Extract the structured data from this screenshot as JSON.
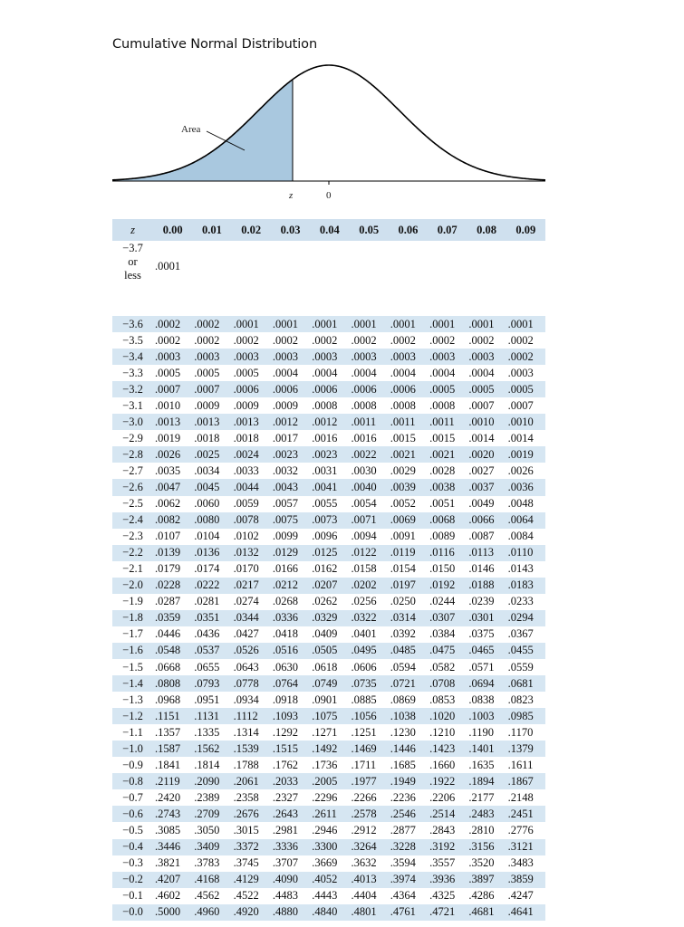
{
  "title": "Cumulative Normal Distribution",
  "figure": {
    "area_label": "Area",
    "z_label": "z",
    "zero_label": "0",
    "shade_color": "#a9c8df"
  },
  "table": {
    "z_header": "z",
    "columns": [
      "0.00",
      "0.01",
      "0.02",
      "0.03",
      "0.04",
      "0.05",
      "0.06",
      "0.07",
      "0.08",
      "0.09"
    ],
    "first_row": {
      "z_lines": [
        "−3.7",
        "or",
        "less"
      ],
      "value": ".0001"
    },
    "rows": [
      {
        "z": "−3.6",
        "values": [
          ".0002",
          ".0002",
          ".0001",
          ".0001",
          ".0001",
          ".0001",
          ".0001",
          ".0001",
          ".0001",
          ".0001"
        ]
      },
      {
        "z": "−3.5",
        "values": [
          ".0002",
          ".0002",
          ".0002",
          ".0002",
          ".0002",
          ".0002",
          ".0002",
          ".0002",
          ".0002",
          ".0002"
        ]
      },
      {
        "z": "−3.4",
        "values": [
          ".0003",
          ".0003",
          ".0003",
          ".0003",
          ".0003",
          ".0003",
          ".0003",
          ".0003",
          ".0003",
          ".0002"
        ]
      },
      {
        "z": "−3.3",
        "values": [
          ".0005",
          ".0005",
          ".0005",
          ".0004",
          ".0004",
          ".0004",
          ".0004",
          ".0004",
          ".0004",
          ".0003"
        ]
      },
      {
        "z": "−3.2",
        "values": [
          ".0007",
          ".0007",
          ".0006",
          ".0006",
          ".0006",
          ".0006",
          ".0006",
          ".0005",
          ".0005",
          ".0005"
        ]
      },
      {
        "z": "−3.1",
        "values": [
          ".0010",
          ".0009",
          ".0009",
          ".0009",
          ".0008",
          ".0008",
          ".0008",
          ".0008",
          ".0007",
          ".0007"
        ]
      },
      {
        "z": "−3.0",
        "values": [
          ".0013",
          ".0013",
          ".0013",
          ".0012",
          ".0012",
          ".0011",
          ".0011",
          ".0011",
          ".0010",
          ".0010"
        ]
      },
      {
        "z": "−2.9",
        "values": [
          ".0019",
          ".0018",
          ".0018",
          ".0017",
          ".0016",
          ".0016",
          ".0015",
          ".0015",
          ".0014",
          ".0014"
        ]
      },
      {
        "z": "−2.8",
        "values": [
          ".0026",
          ".0025",
          ".0024",
          ".0023",
          ".0023",
          ".0022",
          ".0021",
          ".0021",
          ".0020",
          ".0019"
        ]
      },
      {
        "z": "−2.7",
        "values": [
          ".0035",
          ".0034",
          ".0033",
          ".0032",
          ".0031",
          ".0030",
          ".0029",
          ".0028",
          ".0027",
          ".0026"
        ]
      },
      {
        "z": "−2.6",
        "values": [
          ".0047",
          ".0045",
          ".0044",
          ".0043",
          ".0041",
          ".0040",
          ".0039",
          ".0038",
          ".0037",
          ".0036"
        ]
      },
      {
        "z": "−2.5",
        "values": [
          ".0062",
          ".0060",
          ".0059",
          ".0057",
          ".0055",
          ".0054",
          ".0052",
          ".0051",
          ".0049",
          ".0048"
        ]
      },
      {
        "z": "−2.4",
        "values": [
          ".0082",
          ".0080",
          ".0078",
          ".0075",
          ".0073",
          ".0071",
          ".0069",
          ".0068",
          ".0066",
          ".0064"
        ]
      },
      {
        "z": "−2.3",
        "values": [
          ".0107",
          ".0104",
          ".0102",
          ".0099",
          ".0096",
          ".0094",
          ".0091",
          ".0089",
          ".0087",
          ".0084"
        ]
      },
      {
        "z": "−2.2",
        "values": [
          ".0139",
          ".0136",
          ".0132",
          ".0129",
          ".0125",
          ".0122",
          ".0119",
          ".0116",
          ".0113",
          ".0110"
        ]
      },
      {
        "z": "−2.1",
        "values": [
          ".0179",
          ".0174",
          ".0170",
          ".0166",
          ".0162",
          ".0158",
          ".0154",
          ".0150",
          ".0146",
          ".0143"
        ]
      },
      {
        "z": "−2.0",
        "values": [
          ".0228",
          ".0222",
          ".0217",
          ".0212",
          ".0207",
          ".0202",
          ".0197",
          ".0192",
          ".0188",
          ".0183"
        ]
      },
      {
        "z": "−1.9",
        "values": [
          ".0287",
          ".0281",
          ".0274",
          ".0268",
          ".0262",
          ".0256",
          ".0250",
          ".0244",
          ".0239",
          ".0233"
        ]
      },
      {
        "z": "−1.8",
        "values": [
          ".0359",
          ".0351",
          ".0344",
          ".0336",
          ".0329",
          ".0322",
          ".0314",
          ".0307",
          ".0301",
          ".0294"
        ]
      },
      {
        "z": "−1.7",
        "values": [
          ".0446",
          ".0436",
          ".0427",
          ".0418",
          ".0409",
          ".0401",
          ".0392",
          ".0384",
          ".0375",
          ".0367"
        ]
      },
      {
        "z": "−1.6",
        "values": [
          ".0548",
          ".0537",
          ".0526",
          ".0516",
          ".0505",
          ".0495",
          ".0485",
          ".0475",
          ".0465",
          ".0455"
        ]
      },
      {
        "z": "−1.5",
        "values": [
          ".0668",
          ".0655",
          ".0643",
          ".0630",
          ".0618",
          ".0606",
          ".0594",
          ".0582",
          ".0571",
          ".0559"
        ]
      },
      {
        "z": "−1.4",
        "values": [
          ".0808",
          ".0793",
          ".0778",
          ".0764",
          ".0749",
          ".0735",
          ".0721",
          ".0708",
          ".0694",
          ".0681"
        ]
      },
      {
        "z": "−1.3",
        "values": [
          ".0968",
          ".0951",
          ".0934",
          ".0918",
          ".0901",
          ".0885",
          ".0869",
          ".0853",
          ".0838",
          ".0823"
        ]
      },
      {
        "z": "−1.2",
        "values": [
          ".1151",
          ".1131",
          ".1112",
          ".1093",
          ".1075",
          ".1056",
          ".1038",
          ".1020",
          ".1003",
          ".0985"
        ]
      },
      {
        "z": "−1.1",
        "values": [
          ".1357",
          ".1335",
          ".1314",
          ".1292",
          ".1271",
          ".1251",
          ".1230",
          ".1210",
          ".1190",
          ".1170"
        ]
      },
      {
        "z": "−1.0",
        "values": [
          ".1587",
          ".1562",
          ".1539",
          ".1515",
          ".1492",
          ".1469",
          ".1446",
          ".1423",
          ".1401",
          ".1379"
        ]
      },
      {
        "z": "−0.9",
        "values": [
          ".1841",
          ".1814",
          ".1788",
          ".1762",
          ".1736",
          ".1711",
          ".1685",
          ".1660",
          ".1635",
          ".1611"
        ]
      },
      {
        "z": "−0.8",
        "values": [
          ".2119",
          ".2090",
          ".2061",
          ".2033",
          ".2005",
          ".1977",
          ".1949",
          ".1922",
          ".1894",
          ".1867"
        ]
      },
      {
        "z": "−0.7",
        "values": [
          ".2420",
          ".2389",
          ".2358",
          ".2327",
          ".2296",
          ".2266",
          ".2236",
          ".2206",
          ".2177",
          ".2148"
        ]
      },
      {
        "z": "−0.6",
        "values": [
          ".2743",
          ".2709",
          ".2676",
          ".2643",
          ".2611",
          ".2578",
          ".2546",
          ".2514",
          ".2483",
          ".2451"
        ]
      },
      {
        "z": "−0.5",
        "values": [
          ".3085",
          ".3050",
          ".3015",
          ".2981",
          ".2946",
          ".2912",
          ".2877",
          ".2843",
          ".2810",
          ".2776"
        ]
      },
      {
        "z": "−0.4",
        "values": [
          ".3446",
          ".3409",
          ".3372",
          ".3336",
          ".3300",
          ".3264",
          ".3228",
          ".3192",
          ".3156",
          ".3121"
        ]
      },
      {
        "z": "−0.3",
        "values": [
          ".3821",
          ".3783",
          ".3745",
          ".3707",
          ".3669",
          ".3632",
          ".3594",
          ".3557",
          ".3520",
          ".3483"
        ]
      },
      {
        "z": "−0.2",
        "values": [
          ".4207",
          ".4168",
          ".4129",
          ".4090",
          ".4052",
          ".4013",
          ".3974",
          ".3936",
          ".3897",
          ".3859"
        ]
      },
      {
        "z": "−0.1",
        "values": [
          ".4602",
          ".4562",
          ".4522",
          ".4483",
          ".4443",
          ".4404",
          ".4364",
          ".4325",
          ".4286",
          ".4247"
        ]
      },
      {
        "z": "−0.0",
        "values": [
          ".5000",
          ".4960",
          ".4920",
          ".4880",
          ".4840",
          ".4801",
          ".4761",
          ".4721",
          ".4681",
          ".4641"
        ]
      }
    ]
  }
}
